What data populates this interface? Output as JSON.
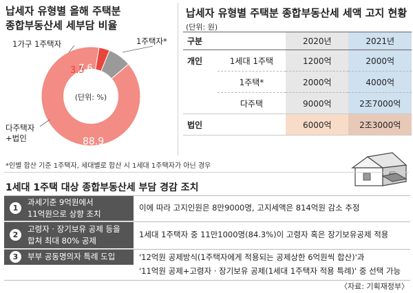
{
  "left_title": [
    "납세자 유형별 올해 주택분",
    "종합부동산세 세부담 비율"
  ],
  "right_title": "납세자 유형별 주택분 종합부동산세 세액 고지 현황",
  "unit": "(단위: 원)",
  "chart_data": {
    "type": "pie",
    "style": "donut",
    "center_label": "(단위: %)",
    "slices": [
      {
        "label": "1가구 1주택자",
        "value": 3.5,
        "color": "#e8453c"
      },
      {
        "label": "1주택자*",
        "value": 7.6,
        "color": "#9a9a9a"
      },
      {
        "label": "다주택자 +법인",
        "value": 88.9,
        "color": "#f28c84"
      }
    ],
    "labels": {
      "one_household": "1가구 1주택자",
      "one_house": "1주택자*",
      "multi_line1": "다주택자",
      "multi_line2": "+법인"
    }
  },
  "table": {
    "headers": [
      "구분",
      "",
      "2020년",
      "2021년"
    ],
    "groups": [
      {
        "name": "개인",
        "rows": [
          {
            "label": "1세대 1주택",
            "y2020": "1200억",
            "y2021": "2000억"
          },
          {
            "label": "1주택*",
            "y2020": "2000억",
            "y2021": "4000억"
          },
          {
            "label": "다주택",
            "y2020": "9000억",
            "y2021": "2조7000억"
          }
        ]
      },
      {
        "name": "법인",
        "rows": [
          {
            "label": "",
            "y2020": "6000억",
            "y2021": "2조3000억"
          }
        ]
      }
    ]
  },
  "footnote": "*인별 합산 기준 1주택자, 세대별로 합산 시 1세대 1주택자가 아닌 경우",
  "section_title": "1세대 1주택 대상 종합부동산세 부담 경감 조치",
  "measures": [
    {
      "num": "1",
      "label": [
        "과세기준 9억원에서",
        "11억원으로 상향 조치"
      ],
      "desc": [
        "이에 따라 고지인원은 8만9000명, 고지세액은 814억원 감소 추정"
      ]
    },
    {
      "num": "2",
      "label": [
        "고령자 · 장기보유 공제 등을",
        "합쳐 최대 80% 공제"
      ],
      "desc": [
        "1세대 1주택자 중 11만1000명(84.3%)이 고령자 혹은 장기보유공제 적용"
      ]
    },
    {
      "num": "3",
      "label": [
        "부부 공동명의자 특례 도입"
      ],
      "desc": [
        "'12억원 공제방식(1주택자에게 적용되는 공제상한 6억원씩 합산)'과",
        "'11억원 공제+고령자 · 장기보유 공제(1세대 1주택자 적용 특례)' 중 선택 가능"
      ]
    }
  ],
  "source": "〈자료: 기획재정부〉"
}
